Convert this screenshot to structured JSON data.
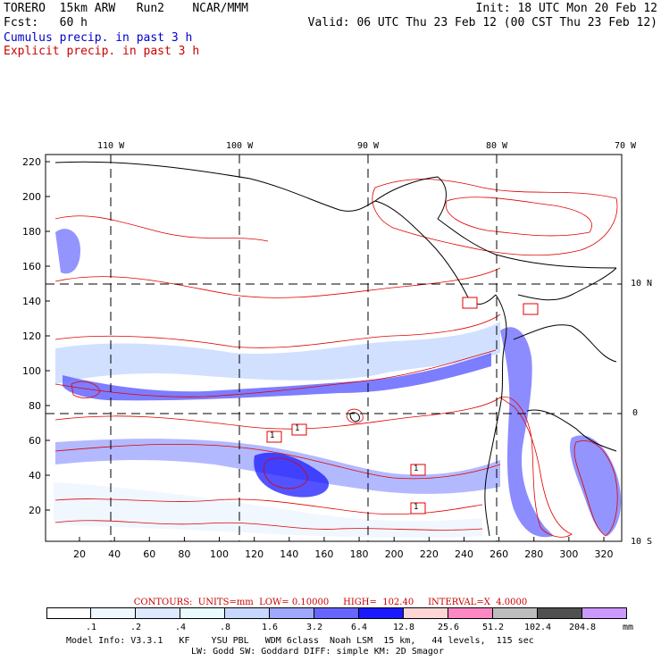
{
  "header": {
    "model": "TORERO  15km ARW   Run2    NCAR/MMM",
    "init": "Init: 18 UTC Mon 20 Feb 12",
    "fcst": "Fcst:   60 h",
    "valid": "Valid: 06 UTC Thu 23 Feb 12 (00 CST Thu 23 Feb 12)",
    "field1": "Cumulus precip. in past 3 h",
    "field2": "Explicit precip. in past 3 h"
  },
  "map": {
    "lon_labels": [
      "110 W",
      "100 W",
      "90 W",
      "80 W",
      "70 W"
    ],
    "lat_labels_right": [
      "10 N",
      "0",
      "10 S"
    ],
    "x_ticks": [
      "20",
      "40",
      "60",
      "80",
      "100",
      "120",
      "140",
      "160",
      "180",
      "200",
      "220",
      "240",
      "260",
      "280",
      "300",
      "320"
    ],
    "y_ticks": [
      "20",
      "40",
      "60",
      "80",
      "100",
      "120",
      "140",
      "160",
      "180",
      "200",
      "220"
    ],
    "box_labels": [
      "1",
      "1",
      "1",
      "1"
    ]
  },
  "contour_info": {
    "contours": "CONTOURS:",
    "units": "UNITS=mm",
    "low": "LOW= 0.10000",
    "high": "HIGH=  102.40",
    "interval": "INTERVAL=X  4.0000"
  },
  "colorbar": {
    "levels": [
      ".1",
      ".2",
      ".4",
      ".8",
      "1.6",
      "3.2",
      "6.4",
      "12.8",
      "25.6",
      "51.2",
      "102.4",
      "204.8"
    ],
    "colors": [
      "#ffffff",
      "#eef6ff",
      "#dde9ff",
      "#e8fbff",
      "#c6d8ff",
      "#9fa8ff",
      "#6666ff",
      "#1a1aff",
      "#ffd6d6",
      "#ff88c4",
      "#bdbdbd",
      "#505050",
      "#cc99ff"
    ],
    "unit": "mm"
  },
  "footer": {
    "line1": "Model Info: V3.3.1   KF    YSU PBL   WDM 6class  Noah LSM  15 km,   44 levels,  115 sec",
    "line2": "LW: Godd SW: Goddard DIFF: simple KM: 2D Smagor"
  }
}
